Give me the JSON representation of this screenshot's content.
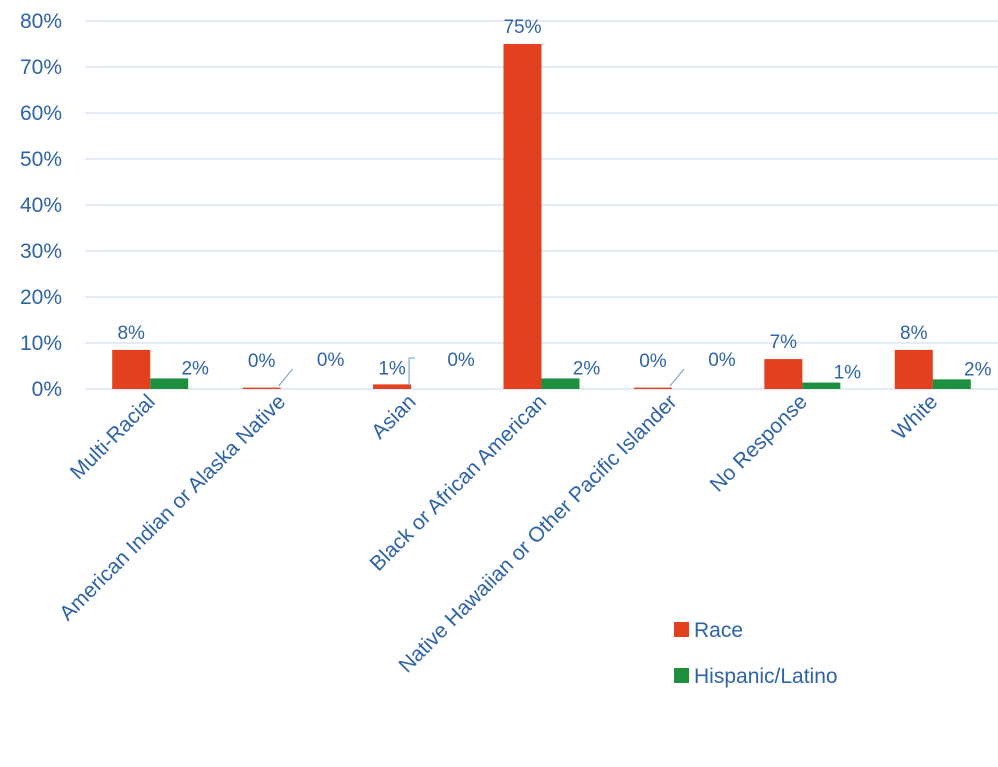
{
  "chart_data": {
    "type": "bar",
    "title": "",
    "xlabel": "",
    "ylabel": "",
    "ylim": [
      0,
      80
    ],
    "yticks": [
      "0%",
      "10%",
      "20%",
      "30%",
      "40%",
      "50%",
      "60%",
      "70%",
      "80%"
    ],
    "grid": true,
    "legend_position": "bottom-right",
    "categories": [
      "Multi-Racial",
      "American Indian or Alaska Native",
      "Asian",
      "Black or African American",
      "Native Hawaiian or Other Pacific Islander",
      "No Response",
      "White"
    ],
    "series": [
      {
        "name": "Race",
        "color": "#e2401f",
        "values": [
          8.5,
          0.3,
          1,
          75,
          0.3,
          6.5,
          8.5
        ],
        "labels": [
          "8%",
          "0%",
          "1%",
          "75%",
          "0%",
          "7%",
          "8%"
        ]
      },
      {
        "name": "Hispanic/Latino",
        "color": "#1e8f3e",
        "values": [
          2.3,
          0,
          0,
          2.3,
          0,
          1.4,
          2.1
        ],
        "labels": [
          "2%",
          "0%",
          "0%",
          "2%",
          "0%",
          "1%",
          "2%"
        ]
      }
    ]
  },
  "colors": {
    "text": "#2e63a8",
    "grid": "#c9d7ea",
    "leader": "#6b9bd1"
  }
}
